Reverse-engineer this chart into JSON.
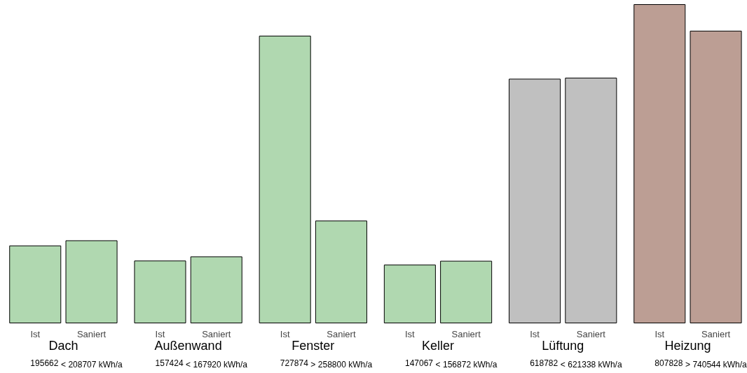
{
  "chart_data": {
    "type": "bar",
    "categories": [
      "Ist",
      "Saniert",
      "Ist",
      "Saniert",
      "Ist",
      "Saniert",
      "Ist",
      "Saniert",
      "Ist",
      "Saniert",
      "Ist",
      "Saniert"
    ],
    "values": [
      195662,
      208707,
      157424,
      167920,
      727874,
      258800,
      147067,
      156872,
      618782,
      621338,
      807828,
      740544
    ],
    "value_labels": [
      "195662",
      "208707 kWh/a",
      "157424",
      "167920 kWh/a",
      "727874",
      "258800 kWh/a",
      "147067",
      "156872 kWh/a",
      "618782",
      "621338 kWh/a",
      "807828",
      "740544 kWh/a"
    ],
    "colors": [
      "#b0d8b0",
      "#b0d8b0",
      "#b0d8b0",
      "#b0d8b0",
      "#b0d8b0",
      "#b0d8b0",
      "#b0d8b0",
      "#b0d8b0",
      "#c0c0c0",
      "#c0c0c0",
      "#bc9e94",
      "#bc9e94"
    ],
    "annotations": [
      "Dach",
      "<",
      "Außenwand",
      "<",
      "Fenster",
      ">",
      "Keller",
      "<",
      "Lüftung",
      "<",
      "Heizung",
      ">"
    ],
    "grid": false
  }
}
